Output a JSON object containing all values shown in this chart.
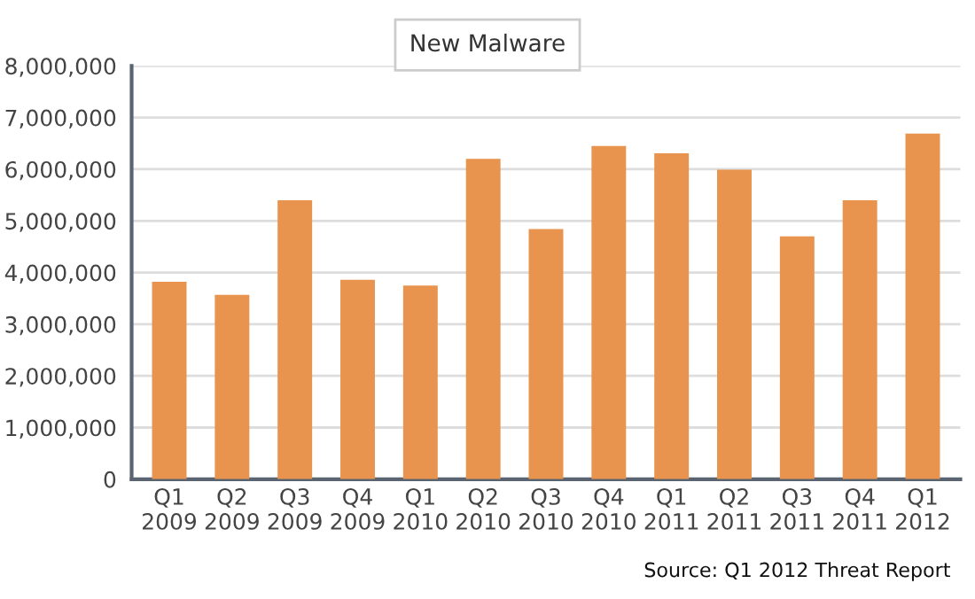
{
  "chart_data": {
    "type": "bar",
    "title": "New Malware",
    "categories": [
      "Q1\n2009",
      "Q2\n2009",
      "Q3\n2009",
      "Q4\n2009",
      "Q1\n2010",
      "Q2\n2010",
      "Q3\n2010",
      "Q4\n2010",
      "Q1\n2011",
      "Q2\n2011",
      "Q3\n2011",
      "Q4\n2011",
      "Q1\n2012"
    ],
    "values": [
      3820000,
      3570000,
      5400000,
      3860000,
      3750000,
      6200000,
      4840000,
      6450000,
      6310000,
      5990000,
      4700000,
      5400000,
      6690000
    ],
    "color": "#e8944f",
    "ylim": [
      0,
      8000000
    ],
    "yticks": [
      {
        "value": 0,
        "label": "0"
      },
      {
        "value": 1000000,
        "label": "1,000,000"
      },
      {
        "value": 2000000,
        "label": "2,000,000"
      },
      {
        "value": 3000000,
        "label": "3,000,000"
      },
      {
        "value": 4000000,
        "label": "4,000,000"
      },
      {
        "value": 5000000,
        "label": "5,000,000"
      },
      {
        "value": 6000000,
        "label": "6,000,000"
      },
      {
        "value": 7000000,
        "label": "7,000,000"
      },
      {
        "value": 8000000,
        "label": "8,000,000"
      }
    ],
    "grid": "y",
    "annotations": [
      "Source: Q1 2012 Threat Report"
    ]
  }
}
